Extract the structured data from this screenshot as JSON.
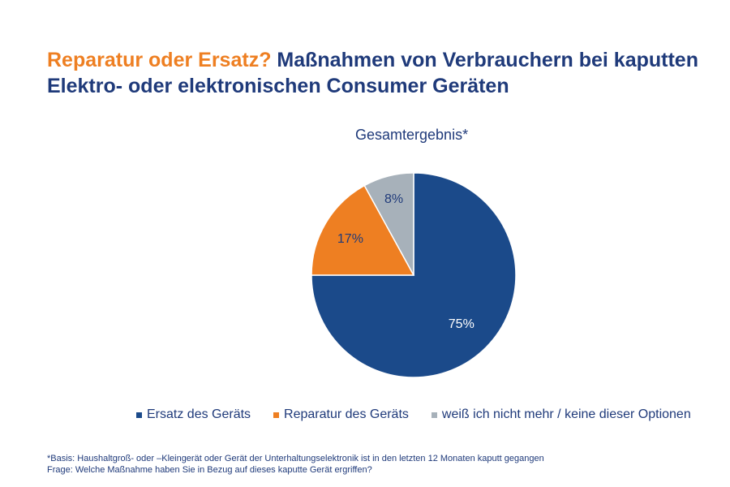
{
  "header": {
    "title_accent": "Reparatur oder Ersatz?",
    "title_rest": " Maßnahmen von Verbrauchern bei kaputten Elektro- oder elektronischen Consumer Geräten"
  },
  "chart_data": {
    "type": "pie",
    "title": "Gesamtergebnis*",
    "slices": [
      {
        "name": "Ersatz des Geräts",
        "value": 75,
        "label": "75%",
        "color": "#1b4a8a"
      },
      {
        "name": "Reparatur des Geräts",
        "value": 17,
        "label": "17%",
        "color": "#ee7f22"
      },
      {
        "name": "weiß ich nicht mehr / keine dieser Optionen",
        "value": 8,
        "label": "8%",
        "color": "#a7b1ba"
      }
    ],
    "legend_position": "bottom"
  },
  "footnote": {
    "line1": "*Basis: Haushaltgroß- oder –Kleingerät oder Gerät der Unterhaltungselektronik ist in den letzten 12 Monaten kaputt gegangen",
    "line2": "Frage: Welche Maßnahme haben Sie in Bezug auf dieses kaputte Gerät ergriffen?"
  }
}
